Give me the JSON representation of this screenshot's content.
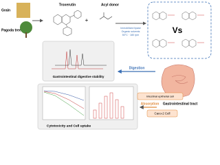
{
  "sources": {
    "grain": "Grain",
    "pagoda_tree": "Pagoda tree"
  },
  "reaction": {
    "substrate": "Troxerutin",
    "plus": "+",
    "acyl_donor": "Acyl donor",
    "conditions": [
      "Immobilized lipase",
      "Organic solvents",
      "50°C · 180 rpm"
    ]
  },
  "comparison": {
    "label": "Vs"
  },
  "panels": {
    "digestive": "Gastrointestinal digestive stability",
    "cell": "Cytotoxicity and Cell uptake"
  },
  "arrows": {
    "digestion": "Digestion",
    "absorption": "Absorption"
  },
  "organ": {
    "label": "Gastrointestinal tract"
  },
  "cells": {
    "epithelial": "Intestinal epithelial cell",
    "caco2": "Caco-2 Cell"
  }
}
